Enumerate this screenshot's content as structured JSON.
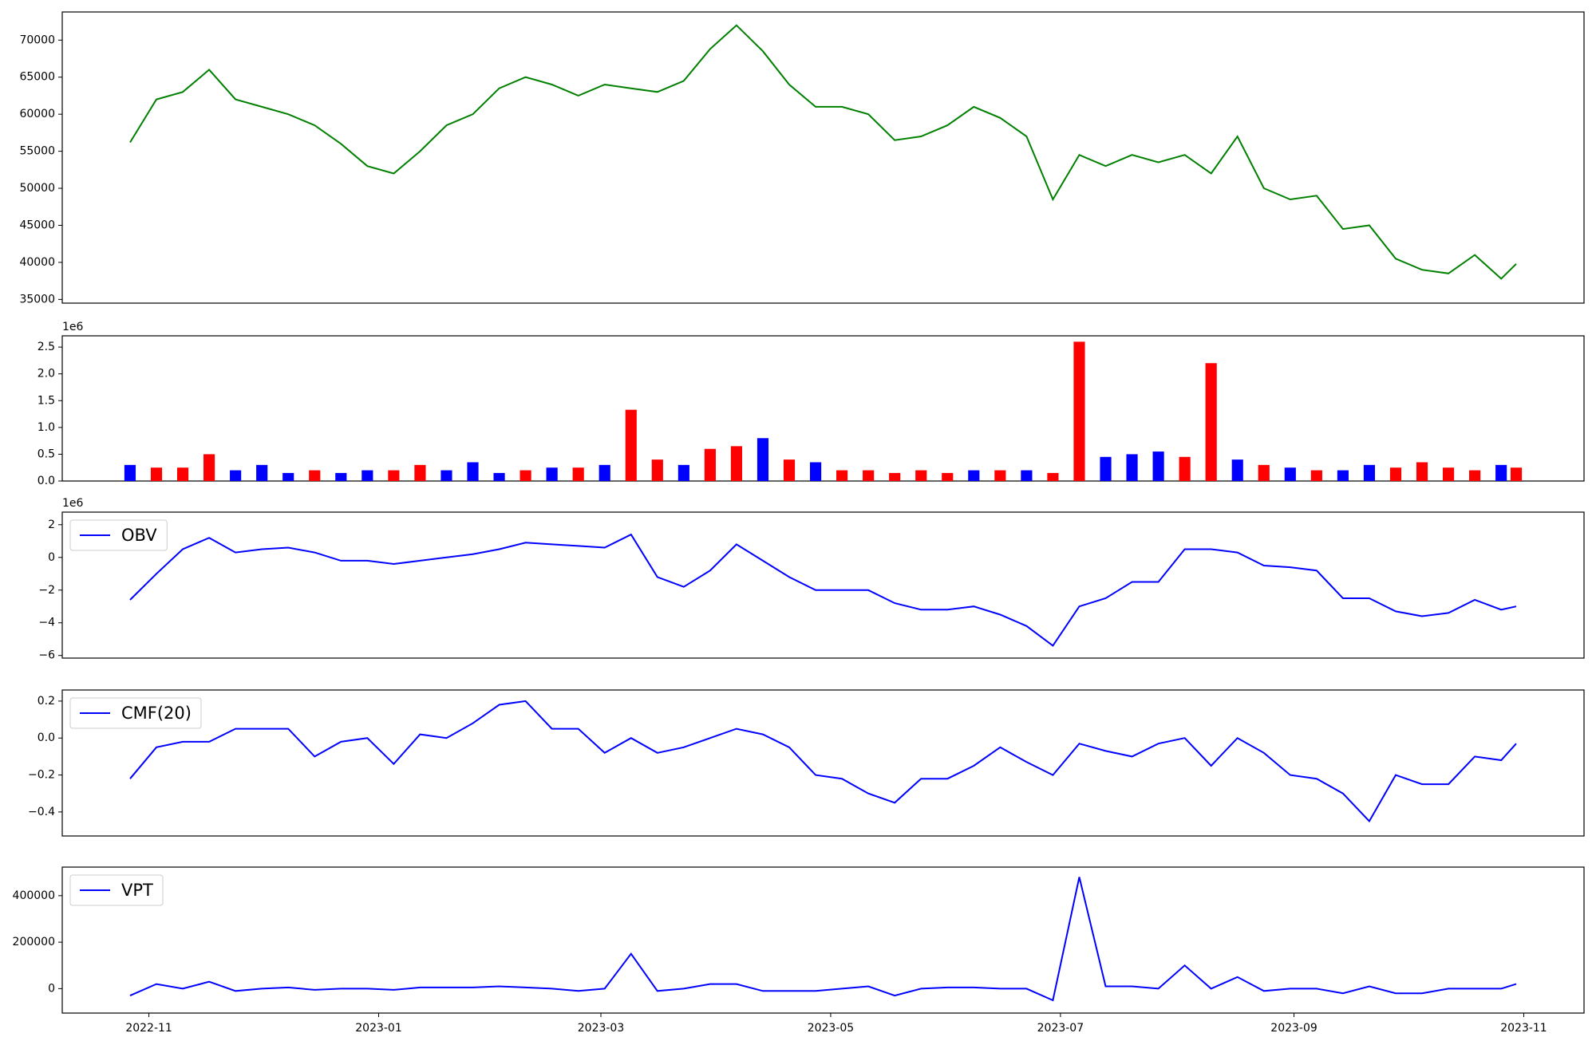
{
  "chart_data": [
    {
      "type": "line",
      "x": [
        19292,
        19299,
        19306,
        19313,
        19320,
        19327,
        19334,
        19341,
        19348,
        19355,
        19362,
        19369,
        19376,
        19383,
        19390,
        19397,
        19404,
        19411,
        19418,
        19425,
        19432,
        19439,
        19446,
        19453,
        19460,
        19467,
        19474,
        19481,
        19488,
        19495,
        19502,
        19509,
        19516,
        19523,
        19530,
        19537,
        19544,
        19551,
        19558,
        19565,
        19572,
        19579,
        19586,
        19593,
        19600,
        19607,
        19614,
        19621,
        19628,
        19635,
        19642,
        19649,
        19656,
        19660
      ],
      "series": [
        {
          "color": "green",
          "values": [
            56200,
            62000,
            63000,
            66000,
            62000,
            61000,
            60000,
            58500,
            56000,
            53000,
            52000,
            55000,
            58500,
            60000,
            63500,
            65000,
            64000,
            62500,
            64000,
            63500,
            63000,
            64500,
            68800,
            72000,
            68500,
            64000,
            61000,
            61000,
            60000,
            56500,
            57000,
            58500,
            61000,
            59500,
            57000,
            48500,
            54500,
            53000,
            54500,
            53500,
            54500,
            52000,
            57000,
            50000,
            48500,
            49000,
            44500,
            45000,
            40500,
            39000,
            38500,
            41000,
            37800,
            39800
          ]
        }
      ],
      "xlim": [
        19274,
        19678
      ],
      "ylim": [
        34500,
        73800
      ],
      "yticks": [
        35000,
        40000,
        45000,
        50000,
        55000,
        60000,
        65000,
        70000
      ]
    },
    {
      "type": "bar",
      "x": [
        19292,
        19299,
        19306,
        19313,
        19320,
        19327,
        19334,
        19341,
        19348,
        19355,
        19362,
        19369,
        19376,
        19383,
        19390,
        19397,
        19404,
        19411,
        19418,
        19425,
        19432,
        19439,
        19446,
        19453,
        19460,
        19467,
        19474,
        19481,
        19488,
        19495,
        19502,
        19509,
        19516,
        19523,
        19530,
        19537,
        19544,
        19551,
        19558,
        19565,
        19572,
        19579,
        19586,
        19593,
        19600,
        19607,
        19614,
        19621,
        19628,
        19635,
        19642,
        19649,
        19656,
        19660
      ],
      "series": [
        {
          "values": [
            300000,
            250000,
            250000,
            500000,
            200000,
            300000,
            150000,
            200000,
            150000,
            200000,
            200000,
            300000,
            200000,
            350000,
            150000,
            200000,
            250000,
            250000,
            300000,
            1330000,
            400000,
            300000,
            600000,
            650000,
            800000,
            400000,
            350000,
            200000,
            200000,
            150000,
            200000,
            150000,
            200000,
            200000,
            200000,
            150000,
            2600000,
            450000,
            500000,
            550000,
            450000,
            2200000,
            400000,
            300000,
            250000,
            200000,
            200000,
            300000,
            250000,
            350000,
            250000,
            200000,
            300000,
            250000
          ],
          "colors": [
            "blue",
            "red",
            "red",
            "red",
            "blue",
            "blue",
            "blue",
            "red",
            "blue",
            "blue",
            "red",
            "red",
            "blue",
            "blue",
            "blue",
            "red",
            "blue",
            "red",
            "blue",
            "red",
            "red",
            "blue",
            "red",
            "red",
            "blue",
            "red",
            "blue",
            "red",
            "red",
            "red",
            "red",
            "red",
            "blue",
            "red",
            "blue",
            "red",
            "red",
            "blue",
            "blue",
            "blue",
            "red",
            "red",
            "blue",
            "red",
            "blue",
            "red",
            "blue",
            "blue",
            "red",
            "red",
            "red",
            "red",
            "blue",
            "red"
          ]
        }
      ],
      "xlim": [
        19274,
        19678
      ],
      "ylim": [
        0,
        2710000
      ],
      "offset_label": "1e6",
      "yticks": [
        {
          "value": 0,
          "label": "0.0"
        },
        {
          "value": 500000,
          "label": "0.5"
        },
        {
          "value": 1000000,
          "label": "1.0"
        },
        {
          "value": 1500000,
          "label": "1.5"
        },
        {
          "value": 2000000,
          "label": "2.0"
        },
        {
          "value": 2500000,
          "label": "2.5"
        }
      ]
    },
    {
      "type": "line",
      "x": [
        19292,
        19299,
        19306,
        19313,
        19320,
        19327,
        19334,
        19341,
        19348,
        19355,
        19362,
        19369,
        19376,
        19383,
        19390,
        19397,
        19404,
        19411,
        19418,
        19425,
        19432,
        19439,
        19446,
        19453,
        19460,
        19467,
        19474,
        19481,
        19488,
        19495,
        19502,
        19509,
        19516,
        19523,
        19530,
        19537,
        19544,
        19551,
        19558,
        19565,
        19572,
        19579,
        19586,
        19593,
        19600,
        19607,
        19614,
        19621,
        19628,
        19635,
        19642,
        19649,
        19656,
        19660
      ],
      "series": [
        {
          "name": "OBV",
          "color": "blue",
          "values": [
            -2600000,
            -1000000,
            500000,
            1200000,
            300000,
            500000,
            600000,
            300000,
            -200000,
            -200000,
            -400000,
            -200000,
            0,
            200000,
            500000,
            900000,
            800000,
            700000,
            600000,
            1400000,
            -1200000,
            -1800000,
            -800000,
            800000,
            -200000,
            -1200000,
            -2000000,
            -2000000,
            -2000000,
            -2800000,
            -3200000,
            -3200000,
            -3000000,
            -3500000,
            -4200000,
            -5400000,
            -3000000,
            -2500000,
            -1500000,
            -1500000,
            500000,
            500000,
            300000,
            -500000,
            -600000,
            -800000,
            -2500000,
            -2500000,
            -3300000,
            -3600000,
            -3400000,
            -2600000,
            -3200000,
            -3000000
          ]
        }
      ],
      "xlim": [
        19274,
        19678
      ],
      "ylim": [
        -6160000,
        2770000
      ],
      "offset_label": "1e6",
      "legend": "upper left",
      "yticks": [
        {
          "value": -6000000,
          "label": "−6"
        },
        {
          "value": -4000000,
          "label": "−4"
        },
        {
          "value": -2000000,
          "label": "−2"
        },
        {
          "value": 0,
          "label": "0"
        },
        {
          "value": 2000000,
          "label": "2"
        }
      ]
    },
    {
      "type": "line",
      "x": [
        19292,
        19299,
        19306,
        19313,
        19320,
        19327,
        19334,
        19341,
        19348,
        19355,
        19362,
        19369,
        19376,
        19383,
        19390,
        19397,
        19404,
        19411,
        19418,
        19425,
        19432,
        19439,
        19446,
        19453,
        19460,
        19467,
        19474,
        19481,
        19488,
        19495,
        19502,
        19509,
        19516,
        19523,
        19530,
        19537,
        19544,
        19551,
        19558,
        19565,
        19572,
        19579,
        19586,
        19593,
        19600,
        19607,
        19614,
        19621,
        19628,
        19635,
        19642,
        19649,
        19656,
        19660
      ],
      "series": [
        {
          "name": "CMF(20)",
          "color": "blue",
          "values": [
            -0.22,
            -0.05,
            -0.02,
            -0.02,
            0.05,
            0.05,
            0.05,
            -0.1,
            -0.02,
            0,
            -0.14,
            0.02,
            0,
            0.08,
            0.18,
            0.2,
            0.05,
            0.05,
            -0.08,
            0,
            -0.08,
            -0.05,
            0,
            0.05,
            0.02,
            -0.05,
            -0.2,
            -0.22,
            -0.3,
            -0.35,
            -0.22,
            -0.22,
            -0.15,
            -0.05,
            -0.13,
            -0.2,
            -0.03,
            -0.07,
            -0.1,
            -0.03,
            0,
            -0.15,
            0,
            -0.08,
            -0.2,
            -0.22,
            -0.3,
            -0.45,
            -0.2,
            -0.25,
            -0.25,
            -0.1,
            -0.12,
            -0.03
          ]
        }
      ],
      "xlim": [
        19274,
        19678
      ],
      "ylim": [
        -0.53,
        0.26
      ],
      "legend": "upper left",
      "yticks": [
        {
          "value": -0.4,
          "label": "−0.4"
        },
        {
          "value": -0.2,
          "label": "−0.2"
        },
        {
          "value": 0,
          "label": "0.0"
        },
        0.2
      ]
    },
    {
      "type": "line",
      "x": [
        19292,
        19299,
        19306,
        19313,
        19320,
        19327,
        19334,
        19341,
        19348,
        19355,
        19362,
        19369,
        19376,
        19383,
        19390,
        19397,
        19404,
        19411,
        19418,
        19425,
        19432,
        19439,
        19446,
        19453,
        19460,
        19467,
        19474,
        19481,
        19488,
        19495,
        19502,
        19509,
        19516,
        19523,
        19530,
        19537,
        19544,
        19551,
        19558,
        19565,
        19572,
        19579,
        19586,
        19593,
        19600,
        19607,
        19614,
        19621,
        19628,
        19635,
        19642,
        19649,
        19656,
        19660
      ],
      "series": [
        {
          "name": "VPT",
          "color": "blue",
          "values": [
            -30000,
            20000,
            0,
            30000,
            -10000,
            0,
            5000,
            -5000,
            0,
            0,
            -5000,
            5000,
            5000,
            5000,
            10000,
            5000,
            0,
            -10000,
            0,
            150000,
            -10000,
            0,
            20000,
            20000,
            -10000,
            -10000,
            -10000,
            0,
            10000,
            -30000,
            0,
            5000,
            5000,
            0,
            0,
            -50000,
            480000,
            10000,
            10000,
            0,
            100000,
            0,
            50000,
            -10000,
            0,
            0,
            -20000,
            10000,
            -20000,
            -20000,
            0,
            0,
            0,
            20000
          ]
        }
      ],
      "xlim": [
        19274,
        19678
      ],
      "ylim": [
        -105000,
        523000
      ],
      "legend": "upper left",
      "yticks": [
        0,
        200000,
        400000
      ],
      "xticks": [
        {
          "value": 19297,
          "label": "2022-11"
        },
        {
          "value": 19358,
          "label": "2023-01"
        },
        {
          "value": 19417,
          "label": "2023-03"
        },
        {
          "value": 19478,
          "label": "2023-05"
        },
        {
          "value": 19539,
          "label": "2023-07"
        },
        {
          "value": 19601,
          "label": "2023-09"
        },
        {
          "value": 19662,
          "label": "2023-11"
        }
      ]
    }
  ]
}
